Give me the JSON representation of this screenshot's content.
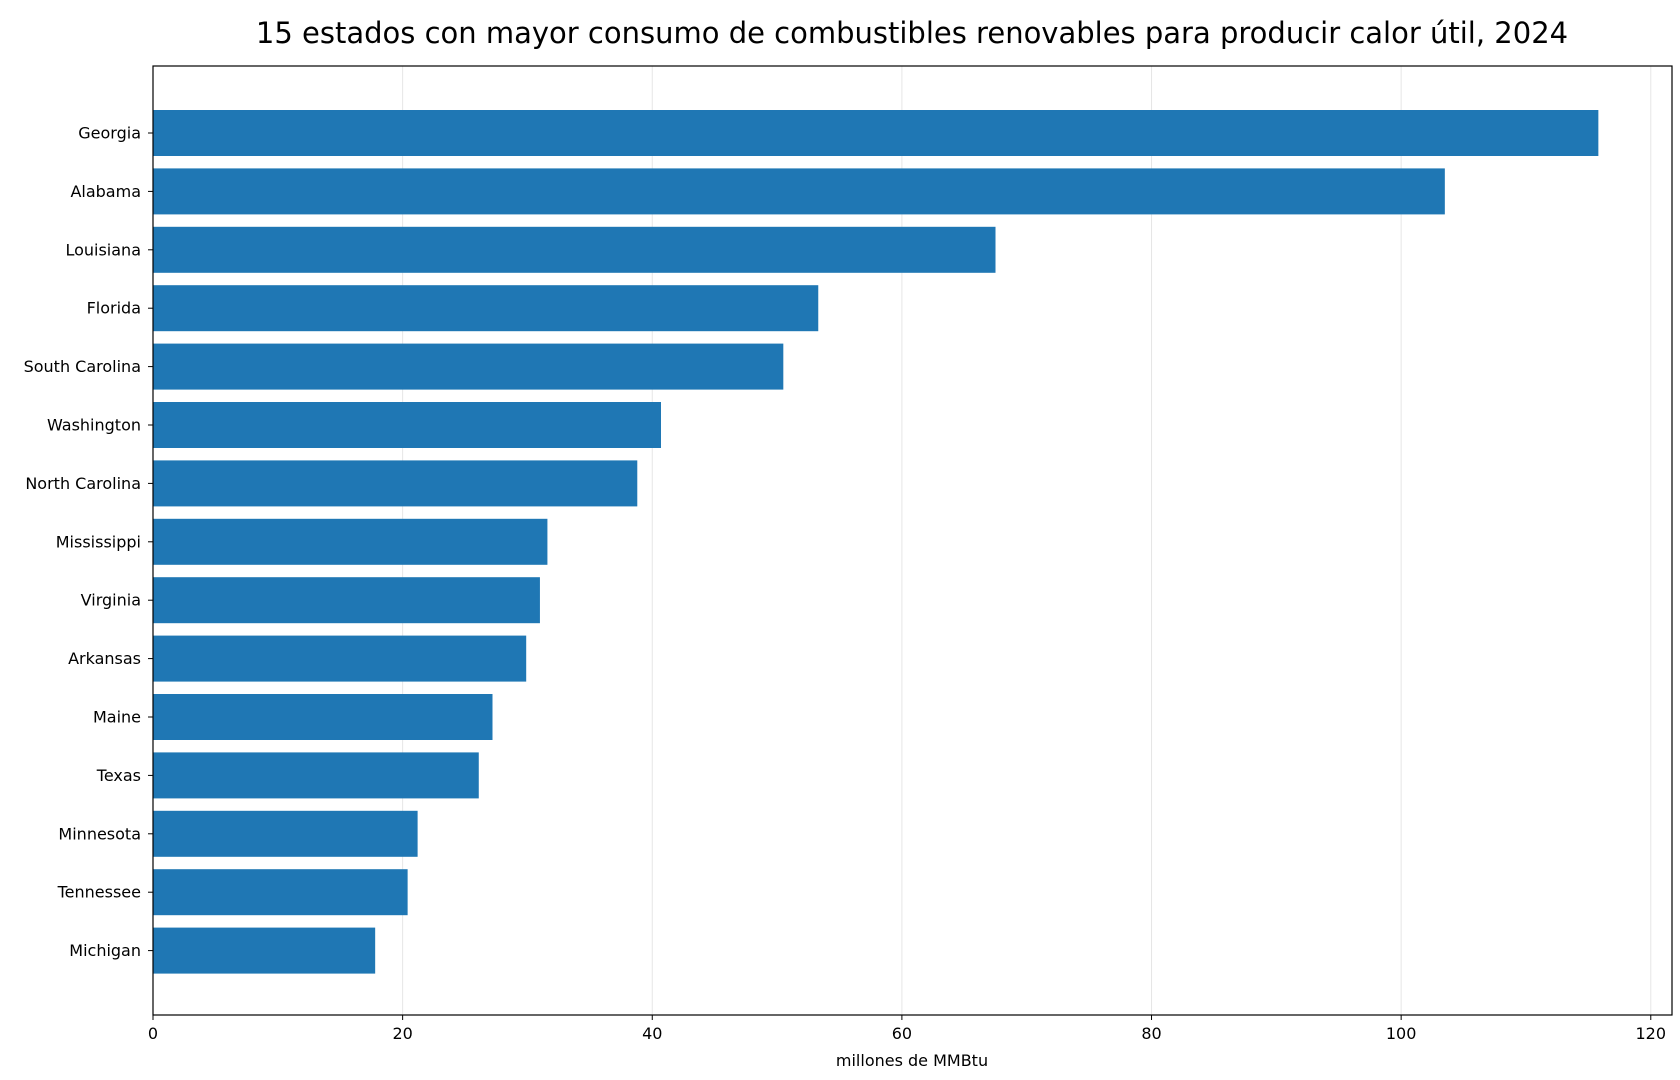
{
  "chart_data": {
    "type": "bar",
    "orientation": "horizontal",
    "title": "15 estados con mayor consumo de combustibles renovables para producir calor útil, 2024",
    "xlabel": "millones de MMBtu",
    "ylabel": "",
    "categories": [
      "Georgia",
      "Alabama",
      "Louisiana",
      "Florida",
      "South Carolina",
      "Washington",
      "North Carolina",
      "Mississippi",
      "Virginia",
      "Arkansas",
      "Maine",
      "Texas",
      "Minnesota",
      "Tennessee",
      "Michigan"
    ],
    "values": [
      115.8,
      103.5,
      67.5,
      53.3,
      50.5,
      40.7,
      38.8,
      31.6,
      31.0,
      29.9,
      27.2,
      26.1,
      21.2,
      20.4,
      17.8
    ],
    "xlim": [
      0,
      121.7
    ],
    "xticks": [
      0,
      20,
      40,
      60,
      80,
      100,
      120
    ],
    "grid": "vertical",
    "legend": "none",
    "bar_color": "#1f77b4",
    "grid_color": "#e6e6e6"
  }
}
